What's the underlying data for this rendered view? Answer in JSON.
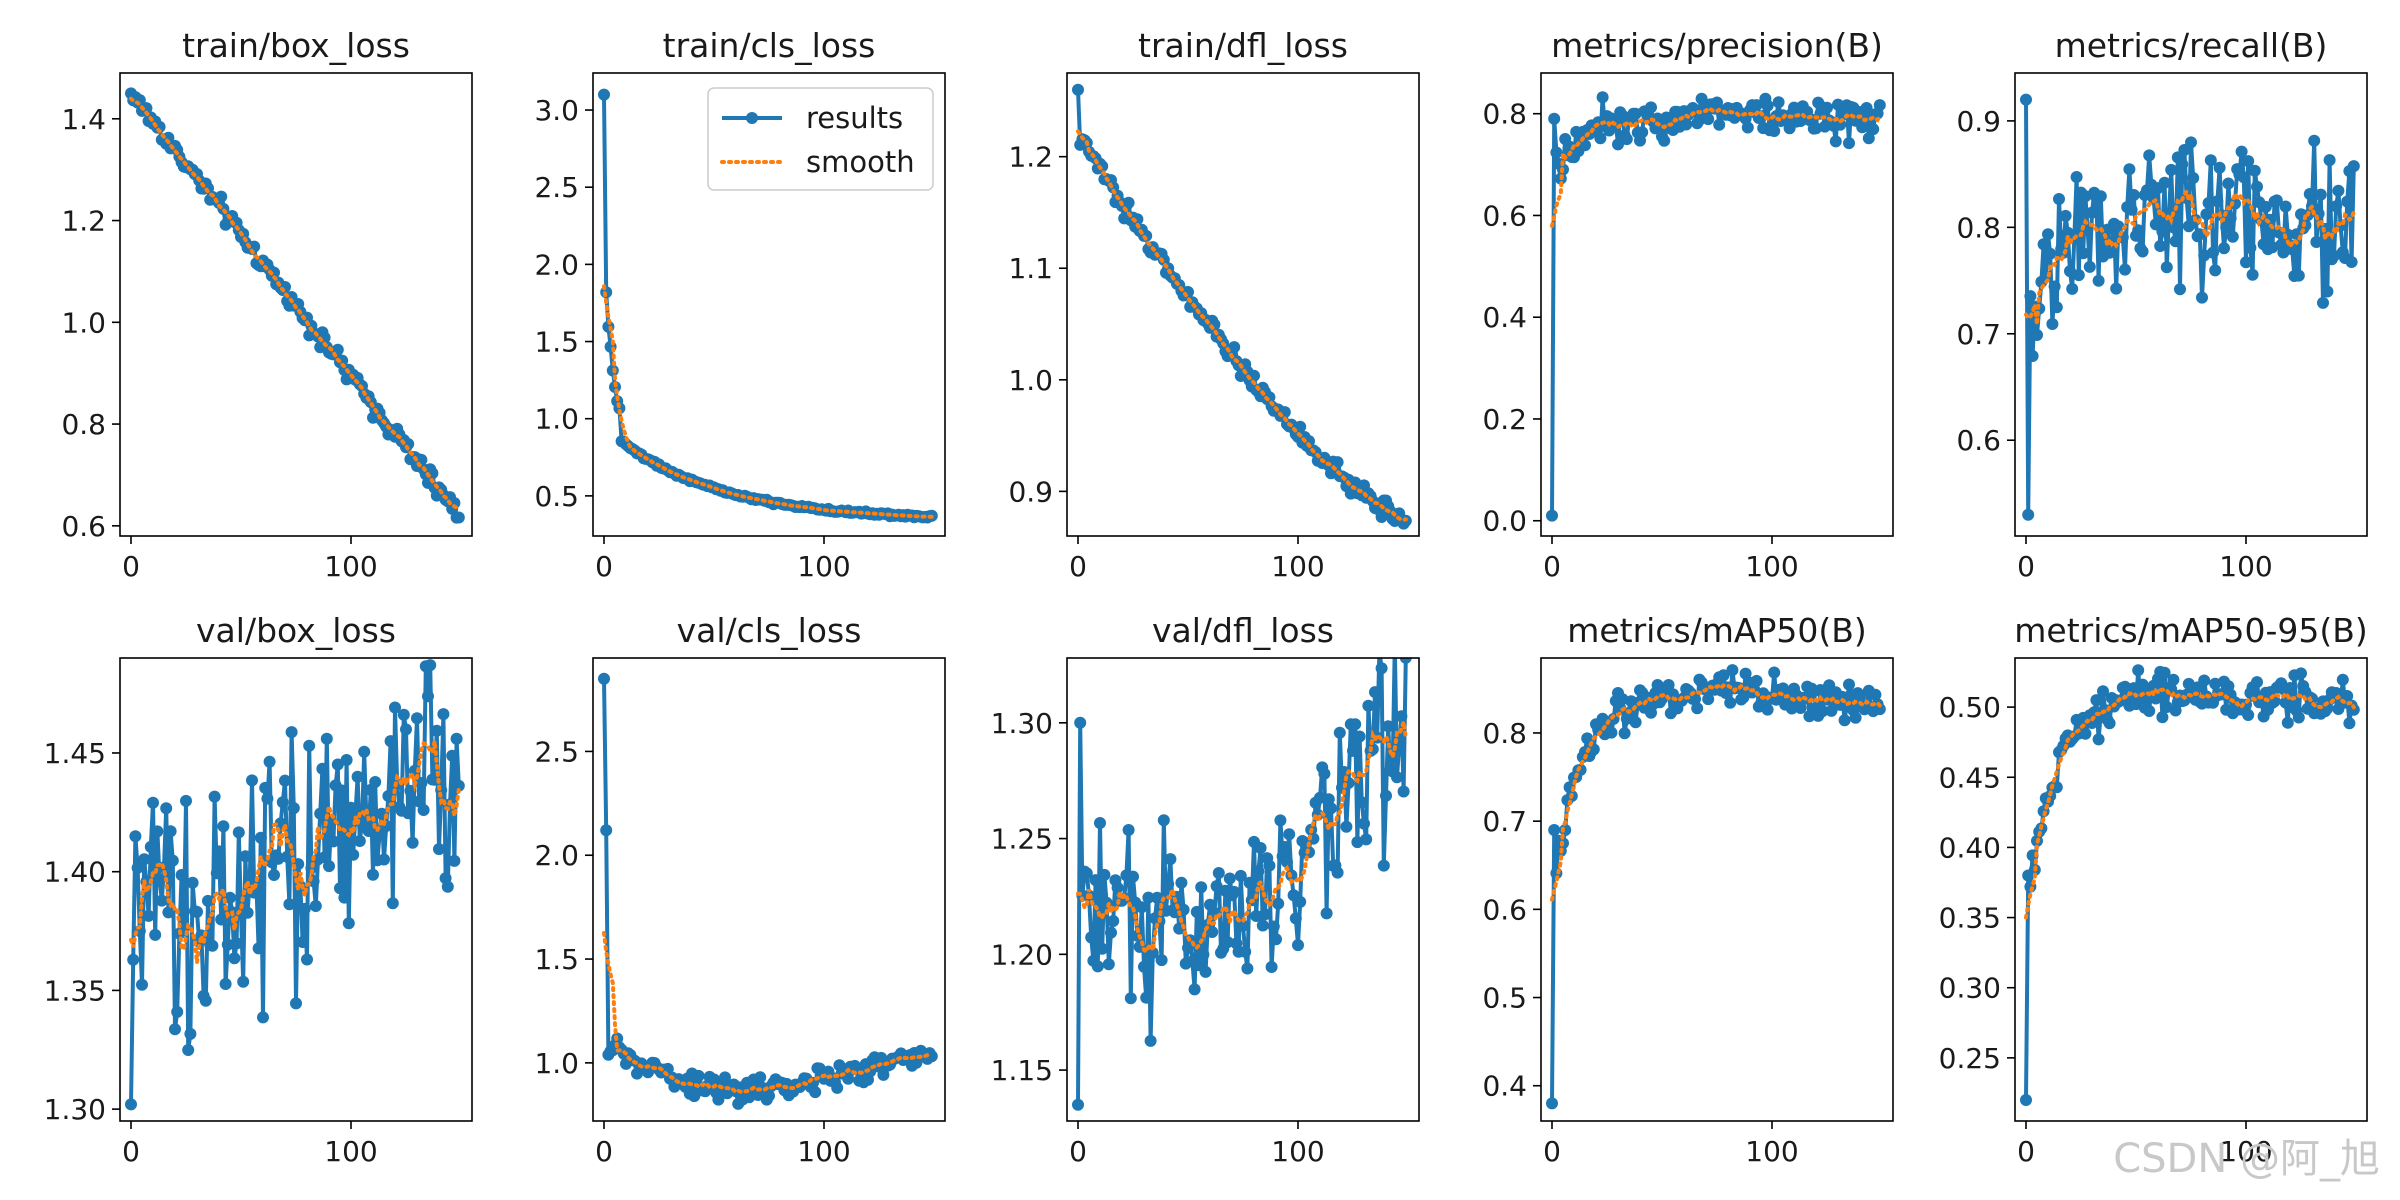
{
  "chart_data": [
    {
      "type": "line",
      "title": "train/box_loss",
      "x_ticks": [
        0,
        100
      ],
      "y_ticks": [
        0.6,
        0.8,
        1.0,
        1.2,
        1.4
      ],
      "y_tick_labels": [
        "0.6",
        "0.8",
        "1.0",
        "1.2",
        "1.4"
      ],
      "xlim": [
        -5,
        155
      ],
      "ylim": [
        0.58,
        1.49
      ],
      "series": [
        {
          "name": "results",
          "color": "#1f77b4"
        },
        {
          "name": "smooth",
          "color": "#ff7f0e"
        }
      ],
      "epochs": 150,
      "start": 1.45,
      "end": 0.62,
      "shape": "linear",
      "noise": 0.01,
      "first_value": 1.45
    },
    {
      "type": "line",
      "title": "train/cls_loss",
      "x_ticks": [
        0,
        100
      ],
      "y_ticks": [
        0.5,
        1.0,
        1.5,
        2.0,
        2.5,
        3.0
      ],
      "y_tick_labels": [
        "0.5",
        "1.0",
        "1.5",
        "2.0",
        "2.5",
        "3.0"
      ],
      "xlim": [
        -5,
        155
      ],
      "ylim": [
        0.24,
        3.24
      ],
      "series": [
        {
          "name": "results",
          "color": "#1f77b4"
        },
        {
          "name": "smooth",
          "color": "#ff7f0e"
        }
      ],
      "legend": {
        "position": "top-right",
        "entries": [
          "results",
          "smooth"
        ]
      },
      "epochs": 150,
      "start": 0.95,
      "end": 0.34,
      "shape": "decay",
      "noise": 0.005,
      "first_value": 3.1,
      "second_value": 1.82
    },
    {
      "type": "line",
      "title": "train/dfl_loss",
      "x_ticks": [
        0,
        100
      ],
      "y_ticks": [
        0.9,
        1.0,
        1.1,
        1.2
      ],
      "y_tick_labels": [
        "0.9",
        "1.0",
        "1.1",
        "1.2"
      ],
      "xlim": [
        -5,
        155
      ],
      "ylim": [
        0.86,
        1.275
      ],
      "series": [
        {
          "name": "results",
          "color": "#1f77b4"
        },
        {
          "name": "smooth",
          "color": "#ff7f0e"
        }
      ],
      "epochs": 150,
      "start": 1.22,
      "end": 0.875,
      "shape": "convex",
      "noise": 0.004,
      "first_value": 1.26
    },
    {
      "type": "line",
      "title": "metrics/precision(B)",
      "x_ticks": [
        0,
        100
      ],
      "y_ticks": [
        0.0,
        0.2,
        0.4,
        0.6,
        0.8
      ],
      "y_tick_labels": [
        "0.0",
        "0.2",
        "0.4",
        "0.6",
        "0.8"
      ],
      "xlim": [
        -5,
        155
      ],
      "ylim": [
        -0.03,
        0.88
      ],
      "series": [
        {
          "name": "results",
          "color": "#1f77b4"
        },
        {
          "name": "smooth",
          "color": "#ff7f0e"
        }
      ],
      "epochs": 150,
      "start": 0.68,
      "end": 0.79,
      "plateau": 0.8,
      "shape": "rise",
      "noise": 0.02,
      "first_value": 0.01,
      "second_value": 0.79
    },
    {
      "type": "line",
      "title": "metrics/recall(B)",
      "x_ticks": [
        0,
        100
      ],
      "y_ticks": [
        0.6,
        0.7,
        0.8,
        0.9
      ],
      "y_tick_labels": [
        "0.6",
        "0.7",
        "0.8",
        "0.9"
      ],
      "xlim": [
        -5,
        155
      ],
      "ylim": [
        0.51,
        0.945
      ],
      "series": [
        {
          "name": "results",
          "color": "#1f77b4"
        },
        {
          "name": "smooth",
          "color": "#ff7f0e"
        }
      ],
      "epochs": 150,
      "start": 0.7,
      "end": 0.81,
      "plateau": 0.81,
      "shape": "rise",
      "noise": 0.035,
      "first_value": 0.92,
      "second_value": 0.53
    },
    {
      "type": "line",
      "title": "val/box_loss",
      "x_ticks": [
        0,
        100
      ],
      "y_ticks": [
        1.3,
        1.35,
        1.4,
        1.45
      ],
      "y_tick_labels": [
        "1.30",
        "1.35",
        "1.40",
        "1.45"
      ],
      "xlim": [
        -5,
        155
      ],
      "ylim": [
        1.295,
        1.49
      ],
      "series": [
        {
          "name": "results",
          "color": "#1f77b4"
        },
        {
          "name": "smooth",
          "color": "#ff7f0e"
        }
      ],
      "epochs": 150,
      "start": 1.37,
      "end": 1.445,
      "shape": "linear",
      "noise": 0.03,
      "first_value": 1.302
    },
    {
      "type": "line",
      "title": "val/cls_loss",
      "x_ticks": [
        0,
        100
      ],
      "y_ticks": [
        1.0,
        1.5,
        2.0,
        2.5
      ],
      "y_tick_labels": [
        "1.0",
        "1.5",
        "2.0",
        "2.5"
      ],
      "xlim": [
        -5,
        155
      ],
      "ylim": [
        0.72,
        2.95
      ],
      "series": [
        {
          "name": "results",
          "color": "#1f77b4"
        },
        {
          "name": "smooth",
          "color": "#ff7f0e"
        }
      ],
      "epochs": 150,
      "start": 1.1,
      "end": 1.04,
      "min_value": 0.86,
      "shape": "ushape",
      "noise": 0.03,
      "first_value": 2.85,
      "second_value": 2.12
    },
    {
      "type": "line",
      "title": "val/dfl_loss",
      "x_ticks": [
        0,
        100
      ],
      "y_ticks": [
        1.15,
        1.2,
        1.25,
        1.3
      ],
      "y_tick_labels": [
        "1.15",
        "1.20",
        "1.25",
        "1.30"
      ],
      "xlim": [
        -5,
        155
      ],
      "ylim": [
        1.128,
        1.328
      ],
      "series": [
        {
          "name": "results",
          "color": "#1f77b4"
        },
        {
          "name": "smooth",
          "color": "#ff7f0e"
        }
      ],
      "epochs": 150,
      "start": 1.23,
      "end": 1.3,
      "min_value": 1.21,
      "shape": "ushape",
      "noise": 0.02,
      "first_value": 1.135,
      "second_value": 1.3
    },
    {
      "type": "line",
      "title": "metrics/mAP50(B)",
      "x_ticks": [
        0,
        100
      ],
      "y_ticks": [
        0.4,
        0.5,
        0.6,
        0.7,
        0.8
      ],
      "y_tick_labels": [
        "0.4",
        "0.5",
        "0.6",
        "0.7",
        "0.8"
      ],
      "xlim": [
        -5,
        155
      ],
      "ylim": [
        0.36,
        0.885
      ],
      "series": [
        {
          "name": "results",
          "color": "#1f77b4"
        },
        {
          "name": "smooth",
          "color": "#ff7f0e"
        }
      ],
      "epochs": 150,
      "start": 0.62,
      "end": 0.83,
      "plateau": 0.85,
      "shape": "rise",
      "noise": 0.012,
      "first_value": 0.38,
      "second_value": 0.69
    },
    {
      "type": "line",
      "title": "metrics/mAP50-95(B)",
      "x_ticks": [
        0,
        100
      ],
      "y_ticks": [
        0.25,
        0.3,
        0.35,
        0.4,
        0.45,
        0.5
      ],
      "y_tick_labels": [
        "0.25",
        "0.30",
        "0.35",
        "0.40",
        "0.45",
        "0.50"
      ],
      "xlim": [
        -5,
        155
      ],
      "ylim": [
        0.205,
        0.535
      ],
      "series": [
        {
          "name": "results",
          "color": "#1f77b4"
        },
        {
          "name": "smooth",
          "color": "#ff7f0e"
        }
      ],
      "epochs": 150,
      "start": 0.35,
      "end": 0.5,
      "plateau": 0.51,
      "shape": "rise",
      "noise": 0.008,
      "first_value": 0.22,
      "second_value": 0.38
    }
  ],
  "watermark": "CSDN @阿_旭"
}
